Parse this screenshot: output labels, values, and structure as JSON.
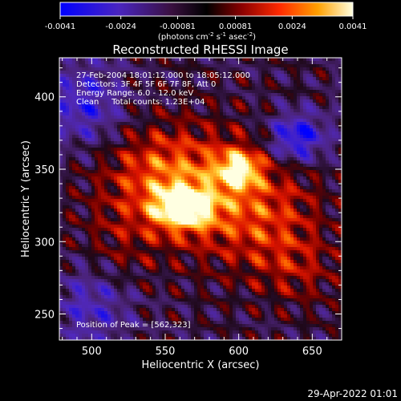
{
  "colorbar": {
    "ticks": [
      "-0.0041",
      "-0.0024",
      "-0.00081",
      "0.00081",
      "0.0024",
      "0.0041"
    ],
    "unit_label_parts": [
      "(photons cm",
      "-2",
      " s",
      "-1",
      " asec",
      "-2",
      ")"
    ]
  },
  "chart_data": {
    "type": "heatmap",
    "title": "Reconstructed RHESSI Image",
    "xlabel": "Heliocentric X (arcsec)",
    "ylabel": "Heliocentric Y (arcsec)",
    "xlim": [
      478,
      670
    ],
    "ylim": [
      232,
      427
    ],
    "xticks": [
      500,
      550,
      600,
      650
    ],
    "yticks": [
      250,
      300,
      350,
      400
    ],
    "colorbar_range": [
      -0.0041,
      0.0041
    ],
    "colormap": [
      "#0000ff",
      "#5a1fa8",
      "#3a1430",
      "#000000",
      "#8a0000",
      "#ff2a00",
      "#ff9a00",
      "#ffee60",
      "#ffffff"
    ],
    "annotations": [
      "27-Feb-2004 18:01:12.000 to 18:05:12.000",
      "Detectors: 3F 4F 5F 6F 7F 8F, Att 0",
      "Energy Range: 6.0 - 12.0 keV",
      "Clean     Total counts: 1.23E+04"
    ],
    "peak_label": "Position of Peak = [562,323]",
    "peak": [
      562,
      323
    ]
  },
  "timestamp": "29-Apr-2022 01:01"
}
